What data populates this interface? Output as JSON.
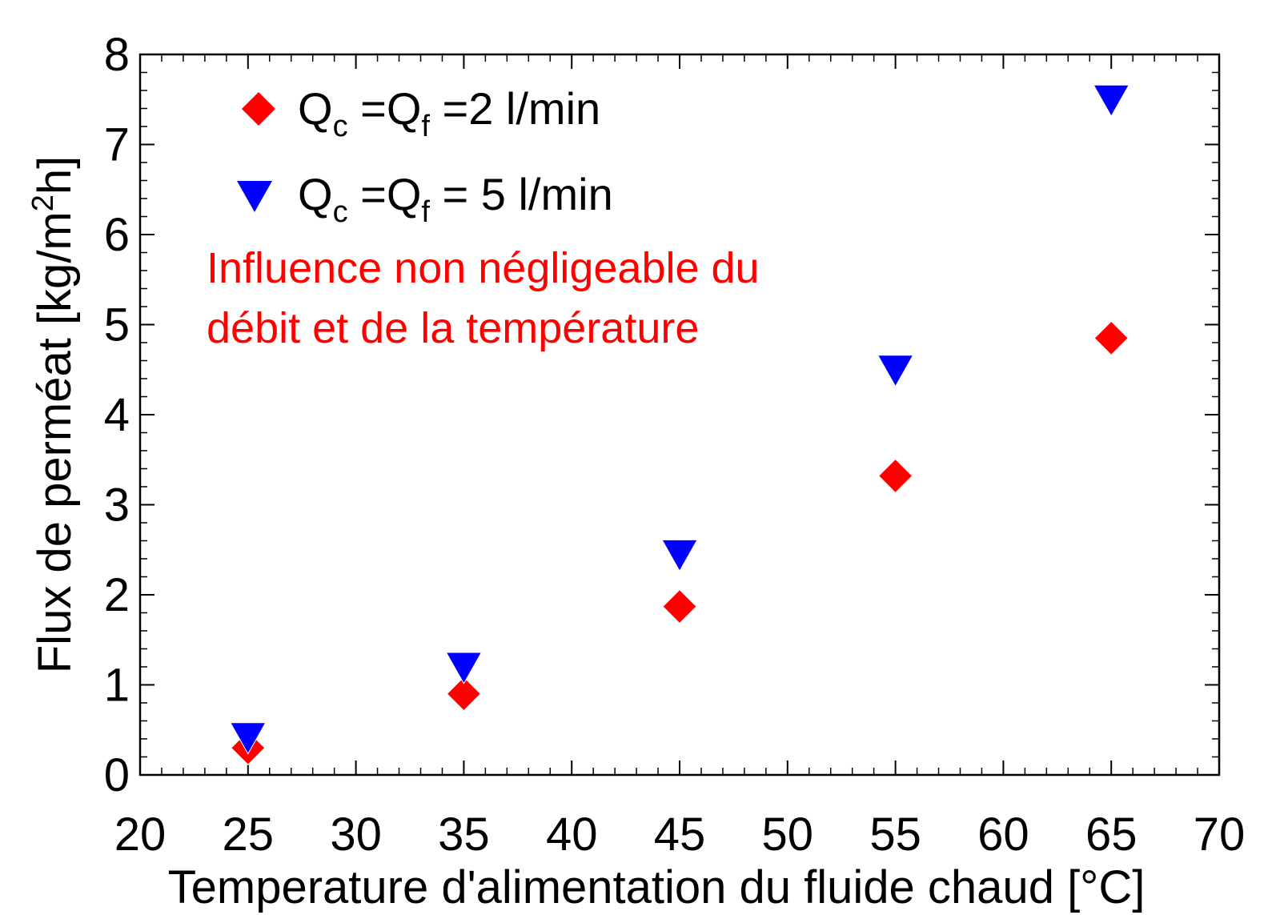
{
  "chart_data": {
    "type": "scatter",
    "title": "",
    "xlabel": "Temperature d'alimentation du fluide chaud [°C]",
    "ylabel": {
      "prefix": "Flux de perméat [kg/m",
      "sup": "2",
      "suffix": "h]"
    },
    "xlim": [
      20,
      70
    ],
    "ylim": [
      0,
      8
    ],
    "x_ticks": [
      20,
      25,
      30,
      35,
      40,
      45,
      50,
      55,
      60,
      65,
      70
    ],
    "y_ticks": [
      0,
      1,
      2,
      3,
      4,
      5,
      6,
      7,
      8
    ],
    "grid": false,
    "legend_position": "top-left",
    "series": [
      {
        "key": "q2",
        "label": {
          "q": "Q",
          "sub_c": "c",
          "mid": " =Q",
          "sub_f": "f",
          "end": " =2 l/min"
        },
        "marker": "diamond",
        "color": "#ff0000",
        "x": [
          25,
          35,
          45,
          55,
          65
        ],
        "y": [
          0.3,
          0.9,
          1.87,
          3.32,
          4.85
        ]
      },
      {
        "key": "q5",
        "label": {
          "q": "Q",
          "sub_c": "c",
          "mid": " =Q",
          "sub_f": "f",
          "end": " = 5 l/min"
        },
        "marker": "triangle-down",
        "color": "#0000ff",
        "x": [
          25,
          35,
          45,
          55,
          65
        ],
        "y": [
          0.42,
          1.2,
          2.45,
          4.5,
          7.5
        ]
      }
    ],
    "annotations": [
      {
        "lines": [
          "Influence non négligeable du",
          "débit et de la température"
        ],
        "color": "#ff0000"
      }
    ]
  }
}
